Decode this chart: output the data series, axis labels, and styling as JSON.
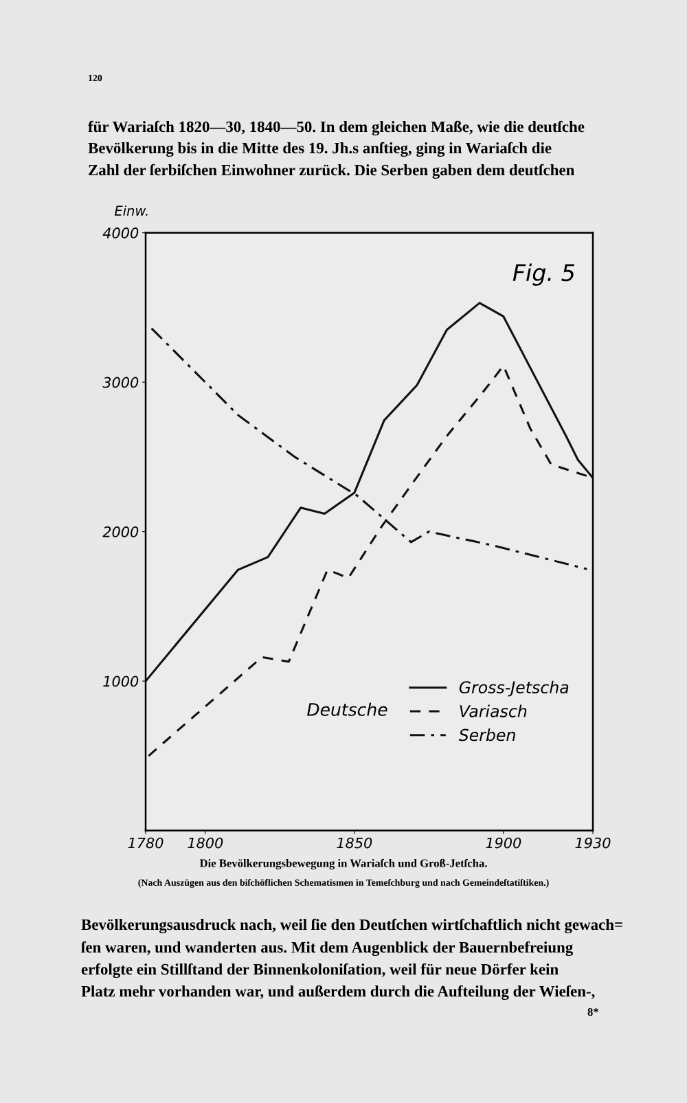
{
  "chart_data": {
    "type": "line",
    "title": "Die Bevölkerungsbewegung in Wariaſch und Groß-Jetſcha.",
    "subtitle": "(Nach Auszügen aus den biſchöflichen Schematismen in Temeſchburg und nach Gemeindeſtatiſtiken.)",
    "ylabel": "Einw.",
    "xlim": [
      1780,
      1930
    ],
    "xticks": [
      1780,
      1800,
      1850,
      1900,
      1930
    ],
    "ylim": [
      0,
      4000
    ],
    "yticks": [
      1000,
      2000,
      3000,
      4000
    ],
    "grid": false,
    "legend": "bottom right",
    "marker": "none",
    "series": [
      {
        "name": "Gross-Jetscha",
        "color": "#111111",
        "line_style": "solid",
        "x": [
          1780,
          1811,
          1821,
          1832,
          1840,
          1850,
          1860,
          1871,
          1881,
          1892,
          1900,
          1921,
          1925,
          1930
        ],
        "values": [
          1000,
          1745,
          1830,
          2160,
          2120,
          2260,
          2745,
          2980,
          3350,
          3530,
          3440,
          2640,
          2480,
          2360
        ]
      },
      {
        "name": "Variasch",
        "color": "#111111",
        "line_style": "dashed",
        "x": [
          1781,
          1819,
          1828,
          1841,
          1848,
          1859,
          1869,
          1881,
          1893,
          1900,
          1909,
          1916,
          1930
        ],
        "values": [
          500,
          1160,
          1130,
          1745,
          1690,
          2030,
          2310,
          2640,
          2930,
          3110,
          2690,
          2450,
          2360
        ]
      },
      {
        "name": "Serben",
        "color": "#111111",
        "line_style": "dashdot",
        "x": [
          1782,
          1811,
          1830,
          1851,
          1869,
          1875,
          1896,
          1928
        ],
        "values": [
          3360,
          2780,
          2500,
          2240,
          1930,
          2000,
          1910,
          1750
        ]
      }
    ],
    "annotations": [
      "120",
      "für Wariaſch 1820—30, 1840—50. In dem gleichen Maße, wie die deutſche",
      "Bevölkerung bis in die Mitte des 19. Jh.s anſtieg, ging in Wariaſch die",
      "Zahl der ſerbiſchen Einwohner zurück. Die Serben gaben dem deutſchen",
      "Fig. 5",
      "Deutsche",
      "Bevölkerungsausdruck nach, weil ſie den Deutſchen wirtſchaftlich nicht gewach=",
      "ſen waren, und wanderten aus. Mit dem Augenblick der Bauernbefreiung",
      "erfolgte ein Stillſtand der Binnenkoloniſation, weil für neue Dörfer kein",
      "Platz mehr vorhanden war, und außerdem durch die Aufteilung der Wieſen-,",
      "8*"
    ]
  }
}
